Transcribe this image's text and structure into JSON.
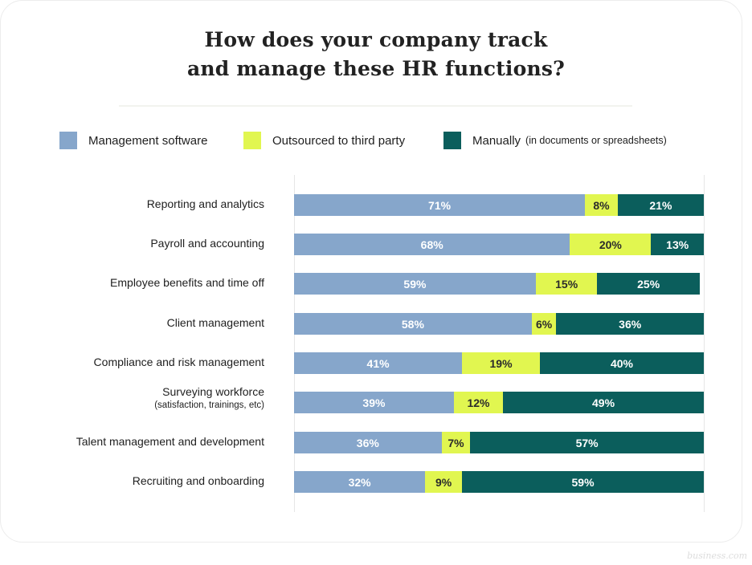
{
  "colors": {
    "management_software": "#86a6cb",
    "outsourced": "#e1f650",
    "manually": "#0b5e5c"
  },
  "watermark": "business.com",
  "chart_data": {
    "type": "bar",
    "orientation": "horizontal",
    "stacked": true,
    "title": "How does your company track and manage these HR functions?",
    "title_lines": [
      "How does your company track",
      "and manage these HR functions?"
    ],
    "xlabel": "",
    "ylabel": "",
    "xlim": [
      0,
      100
    ],
    "grid": false,
    "legend_position": "top",
    "categories": [
      {
        "label": "Reporting and analytics",
        "sub": ""
      },
      {
        "label": "Payroll and accounting",
        "sub": ""
      },
      {
        "label": "Employee benefits and time off",
        "sub": ""
      },
      {
        "label": "Client management",
        "sub": ""
      },
      {
        "label": "Compliance and risk management",
        "sub": ""
      },
      {
        "label": "Surveying workforce",
        "sub": "(satisfaction, trainings, etc)"
      },
      {
        "label": "Talent management and development",
        "sub": ""
      },
      {
        "label": "Recruiting and onboarding",
        "sub": ""
      }
    ],
    "series": [
      {
        "key": "management_software",
        "name": "Management software",
        "name_sub": "",
        "text": "light",
        "values": [
          71,
          68,
          59,
          58,
          41,
          39,
          36,
          32
        ]
      },
      {
        "key": "outsourced",
        "name": "Outsourced to third party",
        "name_sub": "",
        "text": "dark",
        "values": [
          8,
          20,
          15,
          6,
          19,
          12,
          7,
          9
        ]
      },
      {
        "key": "manually",
        "name": "Manually",
        "name_sub": "(in documents or spreadsheets)",
        "text": "light",
        "values": [
          21,
          13,
          25,
          36,
          40,
          49,
          57,
          59
        ]
      }
    ],
    "value_suffix": "%"
  }
}
